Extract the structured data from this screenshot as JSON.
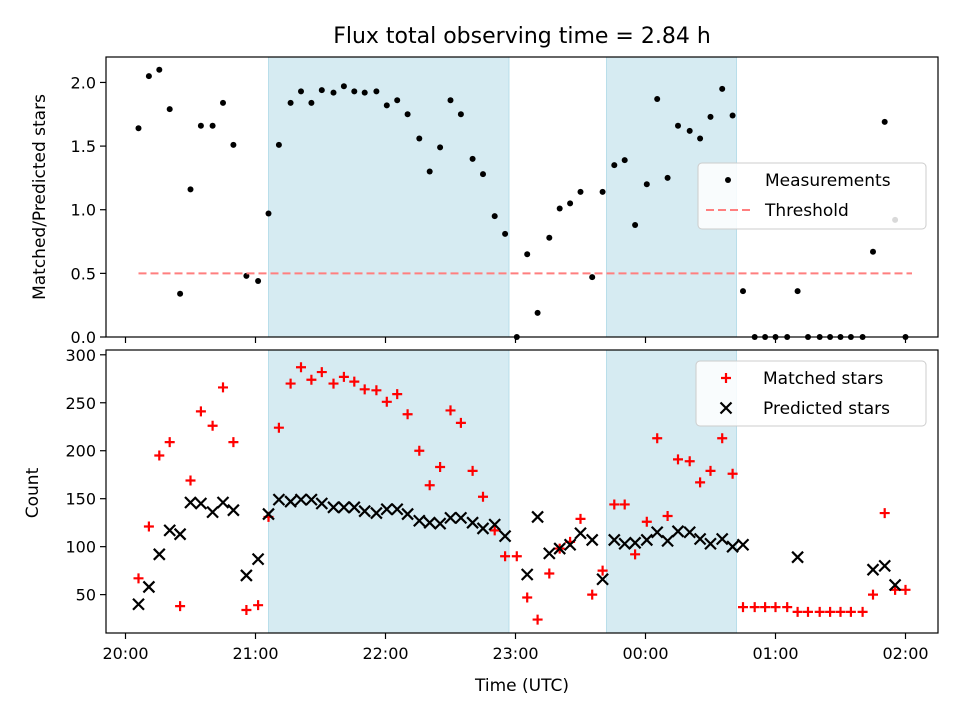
{
  "chart_data": [
    {
      "type": "scatter",
      "title": "Flux total observing time = 2.84 h",
      "ylabel": "Matched/Predicted stars",
      "xlabel": "",
      "ylim": [
        0,
        2.2
      ],
      "yticks": [
        0,
        0.5,
        1.0,
        1.5,
        2.0
      ],
      "yticklabels": [
        "0.0",
        "0.5",
        "1.0",
        "1.5",
        "2.0"
      ],
      "x_unit": "hours since 20:00 UTC",
      "xlim": [
        -0.15,
        6.25
      ],
      "shaded_intervals": [
        [
          1.1,
          2.95
        ],
        [
          3.7,
          4.7
        ]
      ],
      "shade_color": "#add8e6",
      "legend_position": "center-right",
      "series": [
        {
          "name": "Measurements",
          "marker": "dot",
          "color": "#000000",
          "x": [
            0.1,
            0.18,
            0.26,
            0.34,
            0.42,
            0.5,
            0.58,
            0.67,
            0.75,
            0.83,
            0.93,
            1.02,
            1.1,
            1.18,
            1.27,
            1.35,
            1.43,
            1.51,
            1.6,
            1.68,
            1.76,
            1.84,
            1.93,
            2.01,
            2.09,
            2.17,
            2.26,
            2.34,
            2.42,
            2.5,
            2.58,
            2.67,
            2.75,
            2.84,
            2.92,
            3.01,
            3.09,
            3.17,
            3.26,
            3.34,
            3.42,
            3.5,
            3.59,
            3.67,
            3.76,
            3.84,
            3.92,
            4.01,
            4.09,
            4.17,
            4.25,
            4.34,
            4.42,
            4.5,
            4.59,
            4.67,
            4.75,
            4.84,
            4.92,
            5.0,
            5.09,
            5.17,
            5.25,
            5.34,
            5.42,
            5.5,
            5.58,
            5.67,
            5.75,
            5.84,
            5.92,
            6.0
          ],
          "y": [
            1.64,
            2.05,
            2.1,
            1.79,
            0.34,
            1.16,
            1.66,
            1.66,
            1.84,
            1.51,
            0.48,
            0.44,
            0.97,
            1.51,
            1.84,
            1.93,
            1.84,
            1.94,
            1.92,
            1.97,
            1.93,
            1.92,
            1.93,
            1.82,
            1.86,
            1.75,
            1.56,
            1.3,
            1.49,
            1.86,
            1.75,
            1.4,
            1.28,
            0.95,
            0.81,
            0.0,
            0.65,
            0.19,
            0.78,
            1.01,
            1.05,
            1.14,
            0.47,
            1.14,
            1.35,
            1.39,
            0.88,
            1.2,
            1.87,
            1.25,
            1.66,
            1.62,
            1.56,
            1.73,
            1.95,
            1.74,
            0.36,
            0.0,
            0.0,
            0.0,
            0.0,
            0.36,
            0.0,
            0.0,
            0.0,
            0.0,
            0.0,
            0.0,
            0.67,
            1.69,
            0.92,
            0.0
          ]
        },
        {
          "name": "Threshold",
          "marker": "dashed-line",
          "color": "#ff7f7f",
          "x": [
            0.1,
            6.05
          ],
          "y": [
            0.5,
            0.5
          ]
        }
      ]
    },
    {
      "type": "scatter",
      "title": "",
      "ylabel": "Count",
      "xlabel": "Time (UTC)",
      "ylim": [
        10,
        305
      ],
      "yticks": [
        50,
        100,
        150,
        200,
        250,
        300
      ],
      "yticklabels": [
        "50",
        "100",
        "150",
        "200",
        "250",
        "300"
      ],
      "x_unit": "hours since 20:00 UTC",
      "xlim": [
        -0.15,
        6.25
      ],
      "xticks": [
        0,
        1,
        2,
        3,
        4,
        5,
        6
      ],
      "xticklabels": [
        "20:00",
        "21:00",
        "22:00",
        "23:00",
        "00:00",
        "01:00",
        "02:00"
      ],
      "shaded_intervals": [
        [
          1.1,
          2.95
        ],
        [
          3.7,
          4.7
        ]
      ],
      "shade_color": "#add8e6",
      "legend_position": "top-right",
      "series": [
        {
          "name": "Matched stars",
          "marker": "plus",
          "color": "#ff0000",
          "x": [
            0.1,
            0.18,
            0.26,
            0.34,
            0.42,
            0.5,
            0.58,
            0.67,
            0.75,
            0.83,
            0.93,
            1.02,
            1.1,
            1.18,
            1.27,
            1.35,
            1.43,
            1.51,
            1.6,
            1.68,
            1.76,
            1.84,
            1.93,
            2.01,
            2.09,
            2.17,
            2.26,
            2.34,
            2.42,
            2.5,
            2.58,
            2.67,
            2.75,
            2.84,
            2.92,
            3.01,
            3.09,
            3.17,
            3.26,
            3.34,
            3.42,
            3.5,
            3.59,
            3.67,
            3.76,
            3.84,
            3.92,
            4.01,
            4.09,
            4.17,
            4.25,
            4.34,
            4.42,
            4.5,
            4.59,
            4.67,
            4.75,
            4.84,
            4.92,
            5.0,
            5.09,
            5.17,
            5.25,
            5.34,
            5.42,
            5.5,
            5.58,
            5.67,
            5.75,
            5.84,
            5.92,
            6.0
          ],
          "y": [
            67,
            121,
            195,
            209,
            38,
            169,
            241,
            226,
            266,
            209,
            34,
            39,
            131,
            224,
            270,
            287,
            274,
            282,
            270,
            277,
            272,
            264,
            263,
            251,
            259,
            238,
            200,
            164,
            183,
            242,
            229,
            179,
            152,
            117,
            90,
            90,
            47,
            24,
            72,
            98,
            105,
            129,
            50,
            75,
            144,
            144,
            92,
            126,
            213,
            132,
            191,
            189,
            167,
            179,
            213,
            176,
            37,
            37,
            37,
            37,
            37,
            32,
            32,
            32,
            32,
            32,
            32,
            32,
            50,
            135,
            55,
            55
          ]
        },
        {
          "name": "Predicted stars",
          "marker": "x",
          "color": "#000000",
          "x": [
            0.1,
            0.18,
            0.26,
            0.34,
            0.42,
            0.5,
            0.58,
            0.67,
            0.75,
            0.83,
            0.93,
            1.02,
            1.1,
            1.18,
            1.27,
            1.35,
            1.43,
            1.51,
            1.6,
            1.68,
            1.76,
            1.84,
            1.93,
            2.01,
            2.09,
            2.17,
            2.26,
            2.34,
            2.42,
            2.5,
            2.58,
            2.67,
            2.75,
            2.84,
            2.92,
            3.09,
            3.17,
            3.26,
            3.34,
            3.42,
            3.5,
            3.59,
            3.67,
            3.76,
            3.84,
            3.92,
            4.01,
            4.09,
            4.17,
            4.25,
            4.34,
            4.42,
            4.5,
            4.59,
            4.67,
            4.75,
            5.17,
            5.75,
            5.84,
            5.92
          ],
          "y": [
            40,
            58,
            92,
            117,
            113,
            146,
            145,
            136,
            146,
            138,
            70,
            87,
            134,
            149,
            147,
            149,
            149,
            145,
            141,
            141,
            141,
            137,
            135,
            139,
            139,
            134,
            127,
            125,
            124,
            130,
            130,
            125,
            119,
            123,
            111,
            71,
            131,
            93,
            98,
            102,
            114,
            107,
            66,
            107,
            103,
            104,
            107,
            115,
            106,
            116,
            115,
            108,
            103,
            108,
            100,
            102,
            89,
            76,
            80,
            60
          ]
        }
      ]
    }
  ]
}
